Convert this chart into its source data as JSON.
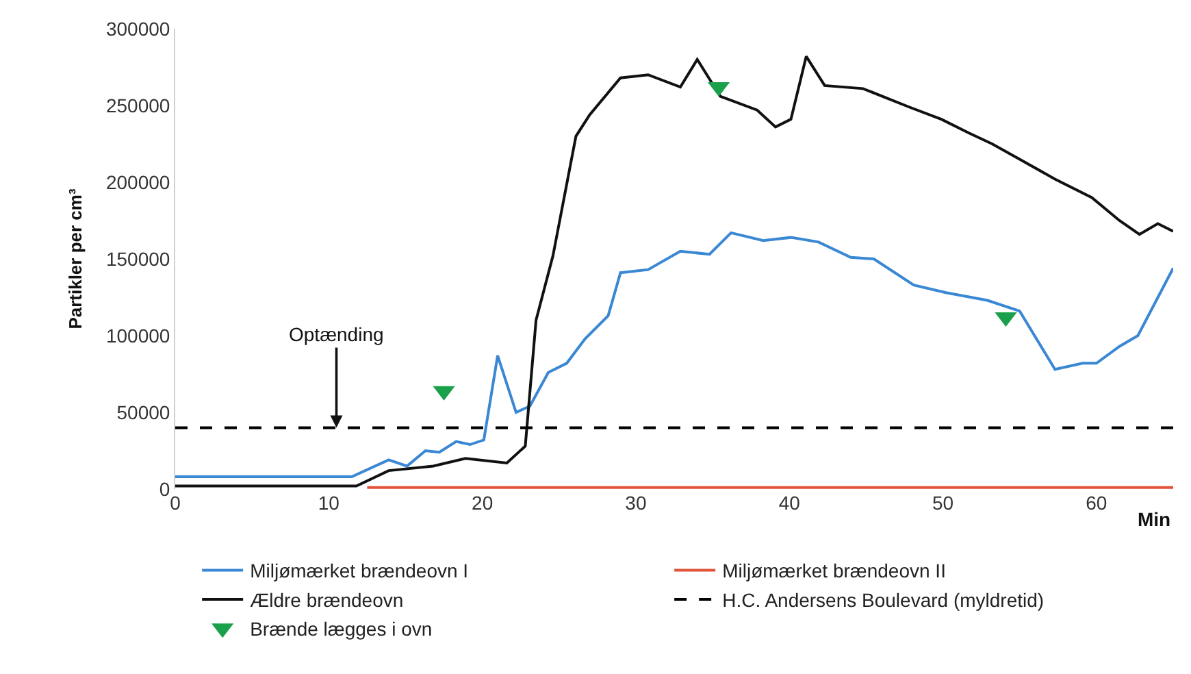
{
  "chart_data": {
    "type": "line",
    "ylabel": "Partikler per cm³",
    "xlabel": "Min",
    "xlim": [
      0,
      65
    ],
    "xticks": [
      0,
      10,
      20,
      30,
      40,
      50,
      60
    ],
    "ylim": [
      0,
      300000
    ],
    "yticks": [
      0,
      50000,
      100000,
      150000,
      200000,
      250000,
      300000
    ],
    "legend": "bottom",
    "marker": "none",
    "line_style": "solid",
    "series": [
      {
        "name": "Miljømærket brændeovn I",
        "color": "#3a87d4",
        "x": [
          0,
          11.5,
          13.9,
          15.1,
          16.3,
          17.2,
          18.3,
          19.2,
          20.1,
          21.0,
          22.2,
          23.1,
          24.3,
          25.5,
          26.7,
          28.2,
          29.0,
          30.8,
          32.9,
          34.8,
          36.2,
          38.3,
          40.1,
          41.9,
          44.0,
          45.5,
          48.1,
          50.2,
          52.9,
          55.0,
          57.3,
          59.1,
          60.0,
          61.5,
          62.7,
          65.0
        ],
        "values": [
          8000,
          8000,
          19000,
          15000,
          25000,
          24000,
          31000,
          29000,
          32000,
          87000,
          50000,
          54000,
          76000,
          82000,
          98000,
          113000,
          141000,
          143000,
          155000,
          153000,
          167000,
          162000,
          164000,
          161000,
          151000,
          150000,
          133000,
          128000,
          123000,
          116000,
          78000,
          82000,
          82000,
          93000,
          100000,
          144000
        ]
      },
      {
        "name": "Miljømærket brændeovn II",
        "color": "#e0533a",
        "x": [
          12.5,
          65
        ],
        "values": [
          1000,
          1000
        ]
      },
      {
        "name": "Ældre brændeovn",
        "color": "#111111",
        "x": [
          0,
          11.8,
          13.9,
          16.8,
          18.9,
          21.6,
          22.8,
          23.5,
          24.6,
          26.1,
          27.0,
          29.0,
          30.8,
          32.9,
          34.0,
          35.5,
          37.9,
          39.1,
          40.1,
          41.1,
          42.3,
          44.8,
          47.8,
          49.9,
          51.7,
          53.2,
          55.0,
          57.3,
          59.7,
          61.5,
          62.8,
          64.0,
          65.0
        ],
        "values": [
          2000,
          2000,
          12000,
          15000,
          20000,
          17000,
          28000,
          110000,
          152000,
          230000,
          244000,
          268000,
          270000,
          262000,
          280000,
          256000,
          247000,
          236000,
          241000,
          282000,
          263000,
          261000,
          249000,
          241000,
          232000,
          225000,
          215000,
          202000,
          190000,
          175000,
          166000,
          173000,
          168000
        ]
      },
      {
        "name": "Brænde lægges i ovn",
        "type": "scatter",
        "marker": "triangle",
        "color": "#1aa04a",
        "x": [
          17.5,
          35.4,
          54.1
        ],
        "values": [
          64000,
          262000,
          112000
        ]
      }
    ],
    "ref_lines": [
      {
        "axis": "y",
        "value": 40000,
        "label": "H.C. Andersens Boulevard (myldretid)",
        "color": "#000000",
        "line_style": "dashed"
      }
    ],
    "annotations": [
      {
        "text": "Optænding",
        "x": 10.5,
        "y": 40000
      }
    ]
  }
}
